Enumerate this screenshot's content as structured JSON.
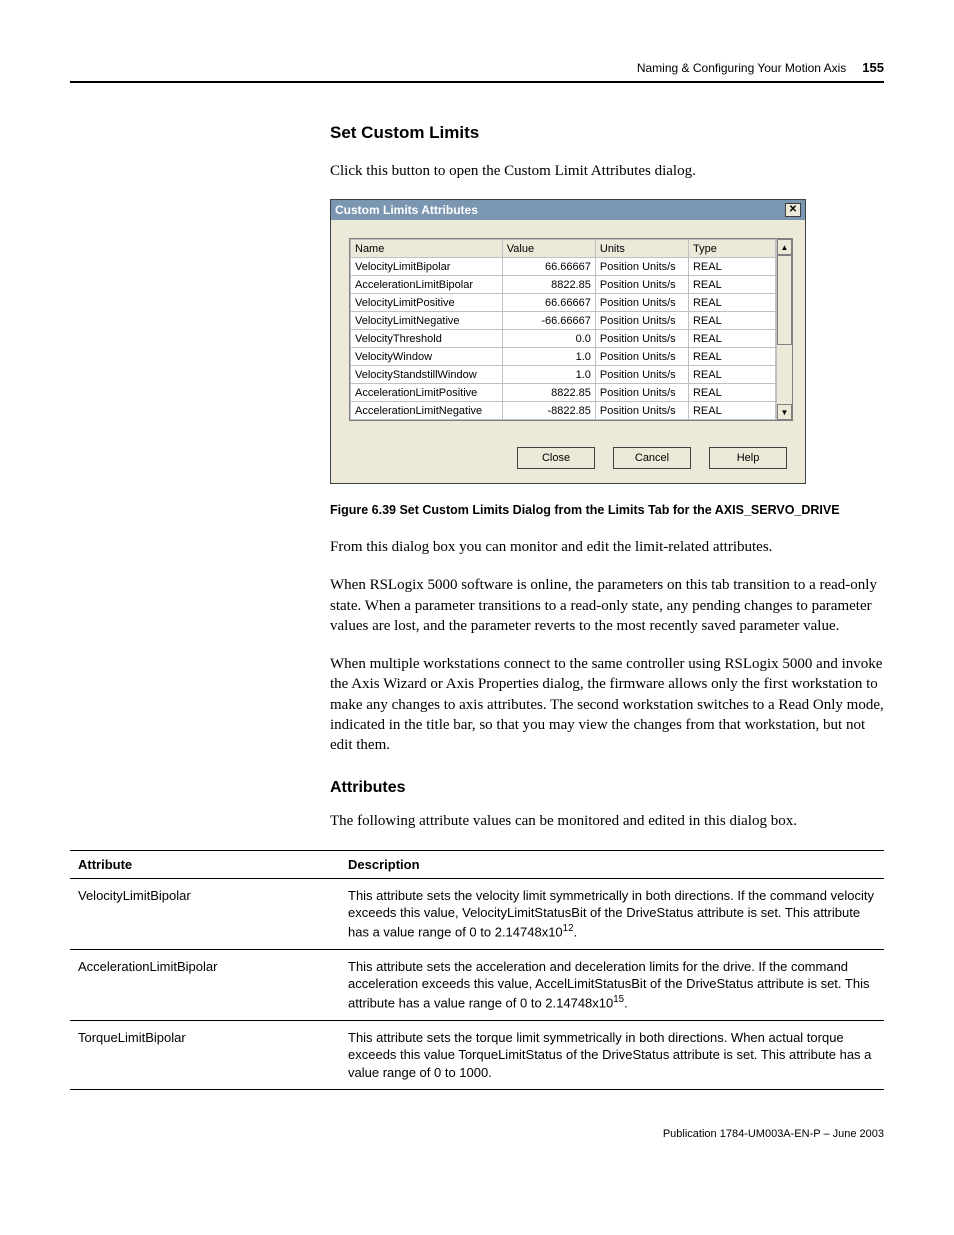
{
  "header": {
    "section": "Naming & Configuring Your Motion Axis",
    "page": "155"
  },
  "heading": "Set Custom Limits",
  "intro": "Click this button to open the Custom Limit Attributes dialog.",
  "dialog": {
    "title": "Custom Limits Attributes",
    "columns": {
      "name": "Name",
      "value": "Value",
      "units": "Units",
      "type": "Type"
    },
    "rows": [
      {
        "name": "VelocityLimitBipolar",
        "value": "66.66667",
        "units": "Position Units/s",
        "type": "REAL"
      },
      {
        "name": "AccelerationLimitBipolar",
        "value": "8822.85",
        "units": "Position Units/s",
        "type": "REAL"
      },
      {
        "name": "VelocityLimitPositive",
        "value": "66.66667",
        "units": "Position Units/s",
        "type": "REAL"
      },
      {
        "name": "VelocityLimitNegative",
        "value": "-66.66667",
        "units": "Position Units/s",
        "type": "REAL"
      },
      {
        "name": "VelocityThreshold",
        "value": "0.0",
        "units": "Position Units/s",
        "type": "REAL"
      },
      {
        "name": "VelocityWindow",
        "value": "1.0",
        "units": "Position Units/s",
        "type": "REAL"
      },
      {
        "name": "VelocityStandstillWindow",
        "value": "1.0",
        "units": "Position Units/s",
        "type": "REAL"
      },
      {
        "name": "AccelerationLimitPositive",
        "value": "8822.85",
        "units": "Position Units/s",
        "type": "REAL"
      },
      {
        "name": "AccelerationLimitNegative",
        "value": "-8822.85",
        "units": "Position Units/s",
        "type": "REAL"
      }
    ],
    "buttons": {
      "close": "Close",
      "cancel": "Cancel",
      "help": "Help"
    }
  },
  "caption": "Figure 6.39 Set Custom Limits Dialog from the Limits Tab for the AXIS_SERVO_DRIVE",
  "paragraphs": {
    "p1": "From this dialog box you can monitor and edit the limit-related attributes.",
    "p2": "When RSLogix 5000 software is online, the parameters on this tab transition to a read-only state. When a parameter transitions to a read-only state, any pending changes to parameter values are lost, and the parameter reverts to the most recently saved parameter value.",
    "p3": "When multiple workstations connect to the same controller using RSLogix 5000 and invoke the Axis Wizard or Axis Properties dialog, the firmware allows only the first workstation to make any changes to axis attributes. The second workstation switches to a Read Only mode, indicated in the title bar, so that you may view the changes from that workstation, but not edit them."
  },
  "attributes_heading": "Attributes",
  "attributes_intro": "The following attribute values can be monitored and edited in this dialog box.",
  "attr_table": {
    "head": {
      "attr": "Attribute",
      "desc": "Description"
    },
    "rows": [
      {
        "attr": "VelocityLimitBipolar",
        "desc_pre": "This attribute sets the velocity limit symmetrically in both directions. If the command velocity exceeds this value, VelocityLimitStatusBit of the DriveStatus attribute is set. This attribute has a value range of 0 to 2.14748x10",
        "exp": "12",
        "desc_post": "."
      },
      {
        "attr": "AccelerationLimitBipolar",
        "desc_pre": "This attribute sets the acceleration and deceleration limits for the drive. If the command acceleration exceeds this value, AccelLimitStatusBit of the DriveStatus attribute is set. This attribute has a value range of 0 to 2.14748x10",
        "exp": "15",
        "desc_post": "."
      },
      {
        "attr": "TorqueLimitBipolar",
        "desc_pre": "This attribute sets the torque limit symmetrically in both directions. When actual torque exceeds this value TorqueLimitStatus of the DriveStatus attribute is set. This attribute has a value range of 0 to 1000.",
        "exp": "",
        "desc_post": ""
      }
    ]
  },
  "footer": "Publication 1784-UM003A-EN-P – June 2003"
}
